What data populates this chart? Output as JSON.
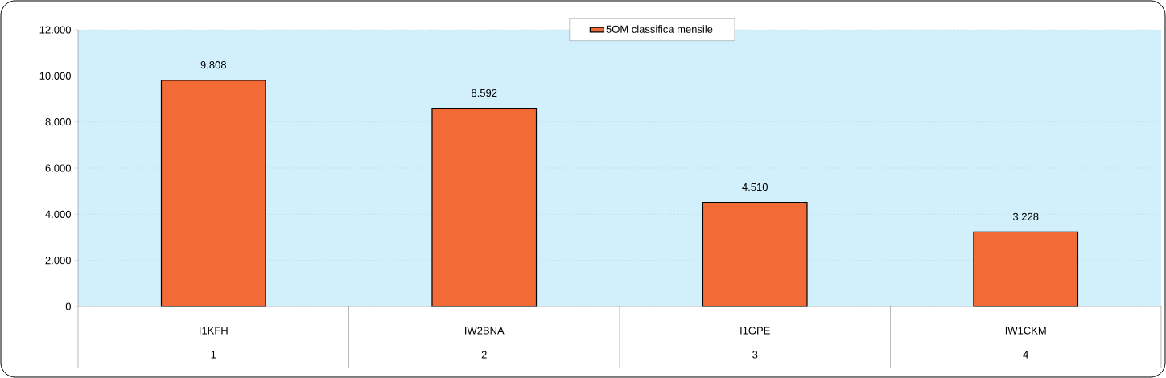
{
  "chart_data": {
    "type": "bar",
    "categories": [
      "I1KFH",
      "IW2BNA",
      "I1GPE",
      "IW1CKM"
    ],
    "annotations": [
      "1",
      "2",
      "3",
      "4"
    ],
    "series": [
      {
        "name": "5OM classifica mensile",
        "color": "#f26a35",
        "values": [
          9808,
          8592,
          4510,
          3228
        ],
        "value_labels": [
          "9.808",
          "8.592",
          "4.510",
          "3.228"
        ]
      }
    ],
    "ylim": [
      0,
      12000
    ],
    "yticks": [
      {
        "value": 0,
        "label": "0"
      },
      {
        "value": 2000,
        "label": "2.000"
      },
      {
        "value": 4000,
        "label": "4.000"
      },
      {
        "value": 6000,
        "label": "6.000"
      },
      {
        "value": 8000,
        "label": "8.000"
      },
      {
        "value": 10000,
        "label": "10.000"
      },
      {
        "value": 12000,
        "label": "12.000"
      }
    ],
    "grid": "y",
    "legend": "top"
  }
}
